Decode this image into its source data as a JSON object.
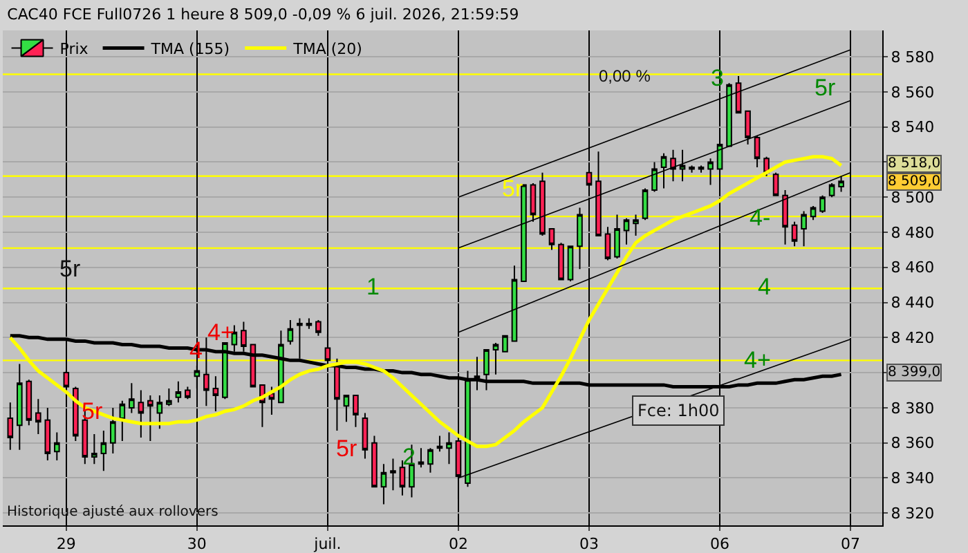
{
  "chart_data": {
    "type": "candlestick",
    "title": "CAC40 FCE Full0726 1 heure 8 509,0 -0,09 % 6 juil. 2026, 21:59:59",
    "categories": [
      null,
      null,
      null,
      null,
      null,
      null,
      "29",
      null,
      null,
      null,
      null,
      null,
      null,
      null,
      null,
      null,
      null,
      null,
      null,
      null,
      "30",
      null,
      null,
      null,
      null,
      null,
      null,
      null,
      null,
      null,
      null,
      null,
      null,
      null,
      "juil.",
      null,
      null,
      null,
      null,
      null,
      null,
      null,
      null,
      null,
      null,
      null,
      null,
      null,
      "02",
      null,
      null,
      null,
      null,
      null,
      null,
      null,
      null,
      null,
      null,
      null,
      null,
      null,
      "03",
      null,
      null,
      null,
      null,
      null,
      null,
      null,
      null,
      null,
      null,
      null,
      null,
      null,
      "06",
      null,
      null,
      null,
      null,
      null,
      null,
      null,
      null,
      null,
      null,
      null,
      null,
      null,
      "07"
    ],
    "series": [
      {
        "name": "Prix",
        "ohlc": [
          [
            8374,
            8383,
            8356,
            8363
          ],
          [
            8370,
            8405,
            8356,
            8394
          ],
          [
            8395,
            8396,
            8370,
            8373
          ],
          [
            8377,
            8385,
            8365,
            8372
          ],
          [
            8373,
            8380,
            8350,
            8354
          ],
          [
            8355,
            8366,
            8350,
            8360
          ],
          [
            8400,
            8401,
            8392,
            8392
          ],
          [
            8391,
            8392,
            8361,
            8364
          ],
          [
            8373,
            8380,
            8348,
            8352
          ],
          [
            8352,
            8365,
            8348,
            8354
          ],
          [
            8354,
            8367,
            8344,
            8360
          ],
          [
            8360,
            8380,
            8354,
            8372
          ],
          [
            8374,
            8384,
            8361,
            8382
          ],
          [
            8380,
            8394,
            8377,
            8385
          ],
          [
            8383,
            8390,
            8363,
            8377
          ],
          [
            8384,
            8387,
            8361,
            8381
          ],
          [
            8377,
            8387,
            8368,
            8383
          ],
          [
            8382,
            8391,
            8381,
            8384
          ],
          [
            8386,
            8395,
            8383,
            8389
          ],
          [
            8390,
            8392,
            8385,
            8386
          ],
          [
            8398,
            8404,
            8391,
            8401
          ],
          [
            8399,
            8420,
            8381,
            8390
          ],
          [
            8391,
            8398,
            8378,
            8387
          ],
          [
            8386,
            8417,
            8385,
            8417
          ],
          [
            8416,
            8427,
            8412,
            8423
          ],
          [
            8424,
            8429,
            8412,
            8415
          ],
          [
            8416,
            8416,
            8392,
            8392
          ],
          [
            8393,
            8393,
            8369,
            8383
          ],
          [
            8388,
            8392,
            8376,
            8385
          ],
          [
            8383,
            8424,
            8383,
            8416
          ],
          [
            8418,
            8430,
            8416,
            8425
          ],
          [
            8428,
            8431,
            8408,
            8427
          ],
          [
            8427,
            8431,
            8425,
            8428
          ],
          [
            8429,
            8430,
            8421,
            8423
          ],
          [
            8414,
            8422,
            8405,
            8407
          ],
          [
            8405,
            8408,
            8367,
            8385
          ],
          [
            8381,
            8387,
            8372,
            8387
          ],
          [
            8387,
            8387,
            8369,
            8376
          ],
          [
            8374,
            8377,
            8351,
            8356
          ],
          [
            8360,
            8364,
            8335,
            8335
          ],
          [
            8335,
            8348,
            8325,
            8343
          ],
          [
            8343,
            8351,
            8333,
            8344
          ],
          [
            8346,
            8350,
            8330,
            8335
          ],
          [
            8335,
            8359,
            8329,
            8348
          ],
          [
            8348,
            8357,
            8346,
            8349
          ],
          [
            8348,
            8357,
            8343,
            8356
          ],
          [
            8357,
            8364,
            8355,
            8358
          ],
          [
            8357,
            8366,
            8348,
            8360
          ],
          [
            8361,
            8364,
            8328,
            8341
          ],
          [
            8337,
            8401,
            8335,
            8396
          ],
          [
            8397,
            8409,
            8390,
            8398
          ],
          [
            8399,
            8413,
            8390,
            8413
          ],
          [
            8413,
            8417,
            8399,
            8416
          ],
          [
            8412,
            8421,
            8412,
            8421
          ],
          [
            8418,
            8461,
            8418,
            8453
          ],
          [
            8452,
            8507,
            8452,
            8507
          ],
          [
            8507,
            8508,
            8486,
            8490
          ],
          [
            8509,
            8514,
            8478,
            8479
          ],
          [
            8482,
            8482,
            8470,
            8473
          ],
          [
            8473,
            8474,
            8453,
            8453
          ],
          [
            8453,
            8472,
            8452,
            8472
          ],
          [
            8472,
            8494,
            8459,
            8490
          ],
          [
            8514,
            8516,
            8504,
            8507
          ],
          [
            8509,
            8526,
            8478,
            8478
          ],
          [
            8479,
            8483,
            8464,
            8465
          ],
          [
            8466,
            8490,
            8465,
            8482
          ],
          [
            8481,
            8488,
            8473,
            8487
          ],
          [
            8485,
            8490,
            8478,
            8487
          ],
          [
            8488,
            8505,
            8487,
            8504
          ],
          [
            8504,
            8520,
            8503,
            8516
          ],
          [
            8517,
            8525,
            8505,
            8523
          ],
          [
            8522,
            8527,
            8509,
            8516
          ],
          [
            8516,
            8527,
            8509,
            8518
          ],
          [
            8517,
            8518,
            8514,
            8516
          ],
          [
            8517,
            8518,
            8514,
            8516
          ],
          [
            8516,
            8522,
            8507,
            8520
          ],
          [
            8516,
            8535,
            8509,
            8530
          ],
          [
            8529,
            8565,
            8529,
            8564
          ],
          [
            8565,
            8569,
            8548,
            8548
          ],
          [
            8549,
            8549,
            8530,
            8534
          ],
          [
            8534,
            8535,
            8517,
            8522
          ],
          [
            8522,
            8523,
            8512,
            8514
          ],
          [
            8513,
            8514,
            8501,
            8501
          ],
          [
            8501,
            8504,
            8473,
            8483
          ],
          [
            8484,
            8486,
            8472,
            8475
          ],
          [
            8482,
            8492,
            8472,
            8490
          ],
          [
            8489,
            8495,
            8487,
            8494
          ],
          [
            8492,
            8501,
            8491,
            8500
          ],
          [
            8501,
            8508,
            8500,
            8507
          ],
          [
            8506,
            8512,
            8503,
            8509
          ],
          null
        ]
      },
      {
        "name": "TMA (155)",
        "type": "line",
        "color": "#000000",
        "values": [
          8421,
          8421,
          8420,
          8420,
          8419,
          8419,
          8419,
          8418,
          8418,
          8417,
          8417,
          8417,
          8416,
          8416,
          8415,
          8415,
          8415,
          8414,
          8414,
          8414,
          8413,
          8413,
          8412,
          8412,
          8411,
          8411,
          8410,
          8410,
          8409,
          8408,
          8407,
          8407,
          8406,
          8405,
          8404,
          8404,
          8403,
          8403,
          8402,
          8402,
          8401,
          8401,
          8400,
          8400,
          8399,
          8399,
          8398,
          8397,
          8397,
          8396,
          8396,
          8395,
          8395,
          8395,
          8395,
          8395,
          8394,
          8394,
          8394,
          8394,
          8394,
          8394,
          8393,
          8393,
          8393,
          8393,
          8393,
          8393,
          8393,
          8393,
          8393,
          8392,
          8392,
          8392,
          8392,
          8392,
          8392,
          8392,
          8393,
          8393,
          8394,
          8394,
          8394,
          8395,
          8396,
          8396,
          8397,
          8398,
          8398,
          8399,
          null
        ]
      },
      {
        "name": "TMA (20)",
        "type": "line",
        "color": "#ffff00",
        "values": [
          8420,
          8414,
          8407,
          8401,
          8397,
          8393,
          8389,
          8384,
          8380,
          8378,
          8376,
          8374,
          8373,
          8372,
          8371,
          8371,
          8371,
          8371,
          8372,
          8372,
          8373,
          8375,
          8376,
          8378,
          8379,
          8381,
          8384,
          8386,
          8389,
          8392,
          8396,
          8399,
          8401,
          8402,
          8404,
          8405,
          8406,
          8406,
          8405,
          8403,
          8401,
          8397,
          8392,
          8387,
          8382,
          8377,
          8372,
          8368,
          8364,
          8361,
          8358,
          8358,
          8359,
          8363,
          8367,
          8372,
          8376,
          8380,
          8389,
          8398,
          8408,
          8419,
          8430,
          8439,
          8448,
          8457,
          8466,
          8474,
          8478,
          8481,
          8484,
          8487,
          8489,
          8491,
          8493,
          8495,
          8498,
          8502,
          8505,
          8508,
          8511,
          8514,
          8517,
          8520,
          8521,
          8522,
          8523,
          8523,
          8522,
          8518,
          null
        ]
      },
      {
        "type": "line",
        "color": "#000000",
        "x": [
          "02",
          "07"
        ],
        "values": [
          8500,
          8584
        ]
      },
      {
        "type": "line",
        "color": "#000000",
        "x": [
          "02",
          "07"
        ],
        "values": [
          8471,
          8555
        ]
      },
      {
        "type": "line",
        "color": "#000000",
        "x": [
          "02",
          "07"
        ],
        "values": [
          8423,
          8514
        ]
      },
      {
        "type": "line",
        "color": "#000000",
        "x": [
          "02",
          "07"
        ],
        "values": [
          8340,
          8419
        ]
      }
    ],
    "ylim": [
      8313,
      8595
    ],
    "yticks": [
      {
        "value": 8320,
        "label": "8 320"
      },
      {
        "value": 8340,
        "label": "8 340"
      },
      {
        "value": 8360,
        "label": "8 360"
      },
      {
        "value": 8380,
        "label": "8 380"
      },
      {
        "value": 8400,
        "label": null
      },
      {
        "value": 8420,
        "label": "8 420"
      },
      {
        "value": 8440,
        "label": "8 440"
      },
      {
        "value": 8460,
        "label": "8 460"
      },
      {
        "value": 8480,
        "label": "8 480"
      },
      {
        "value": 8500,
        "label": "8 500"
      },
      {
        "value": 8520,
        "label": null
      },
      {
        "value": 8540,
        "label": "8 540"
      },
      {
        "value": 8560,
        "label": "8 560"
      },
      {
        "value": 8580,
        "label": "8 580"
      }
    ],
    "grid": true,
    "legend": "top left",
    "ref_lines": [
      {
        "axis": "y",
        "value": 8570,
        "color": "#ffff00"
      },
      {
        "axis": "y",
        "value": 8512,
        "color": "#ffff00"
      },
      {
        "axis": "y",
        "value": 8489,
        "color": "#ffff00"
      },
      {
        "axis": "y",
        "value": 8471,
        "color": "#ffff00"
      },
      {
        "axis": "y",
        "value": 8448,
        "color": "#ffff00"
      },
      {
        "axis": "y",
        "value": 8407,
        "color": "#ffff00"
      }
    ],
    "annotations": [
      "5r",
      "5r",
      "4+",
      "4",
      "1",
      "5r",
      "2",
      "5r",
      "0,00 %",
      "3",
      "5r",
      "4-",
      "4",
      "4+",
      "Fce: 1h00",
      "Historique ajusté aux rollovers",
      "8 518,0",
      "8 509,0",
      "8 399,0"
    ]
  }
}
